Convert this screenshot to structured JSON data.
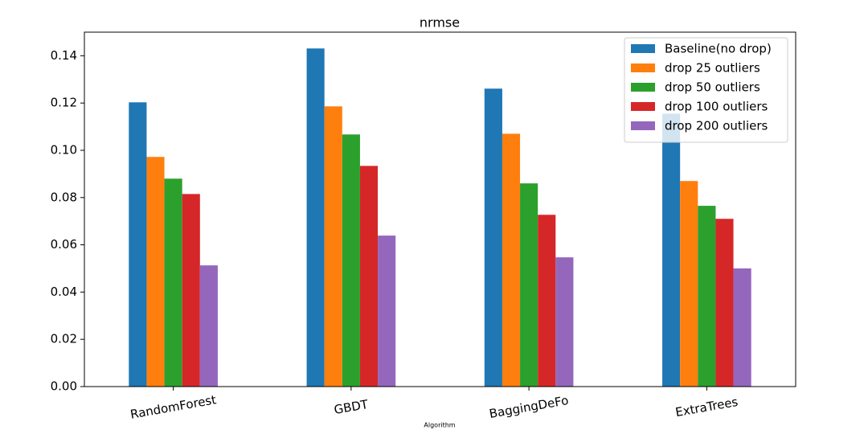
{
  "chart_data": {
    "type": "bar",
    "title": "nrmse",
    "x_label": "Algorithm",
    "categories": [
      "RandomForest",
      "GBDT",
      "BaggingDeFo",
      "ExtraTrees"
    ],
    "series": [
      {
        "name": "Baseline(no drop)",
        "color": "#1f77b4",
        "values": [
          0.1203,
          0.1431,
          0.1261,
          0.1155
        ]
      },
      {
        "name": "drop 25 outliers",
        "color": "#ff7f0e",
        "values": [
          0.0972,
          0.1186,
          0.107,
          0.087
        ]
      },
      {
        "name": "drop 50 outliers",
        "color": "#2ca02c",
        "values": [
          0.088,
          0.1067,
          0.086,
          0.0765
        ]
      },
      {
        "name": "drop 100 outliers",
        "color": "#d62728",
        "values": [
          0.0815,
          0.0934,
          0.0727,
          0.071
        ]
      },
      {
        "name": "drop 200 outliers",
        "color": "#9467bd",
        "values": [
          0.0513,
          0.0639,
          0.0547,
          0.05
        ]
      }
    ],
    "ylim": [
      0,
      0.15
    ],
    "yticks": [
      {
        "value": 0,
        "label": "0.00"
      },
      0.02,
      0.04,
      0.06,
      0.08,
      {
        "value": 0.1,
        "label": "0.10"
      },
      0.12,
      0.14
    ],
    "grid": false,
    "legend": "upper right"
  }
}
